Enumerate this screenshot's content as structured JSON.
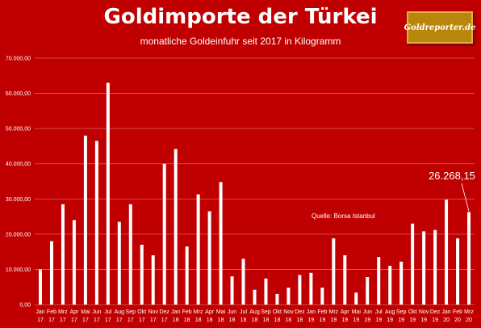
{
  "header": {
    "title": "Goldimporte der Türkei",
    "subtitle": "monatliche Goldeinfuhr seit 2017 in Kilogramm",
    "logo_text": "Goldreporter.de"
  },
  "chart_data": {
    "type": "bar",
    "title": "Goldimporte der Türkei",
    "subtitle": "monatliche Goldeinfuhr seit 2017 in Kilogramm",
    "xlabel": "",
    "ylabel": "",
    "ylim": [
      0,
      70000
    ],
    "yticks": [
      0,
      10000,
      20000,
      30000,
      40000,
      50000,
      60000,
      70000
    ],
    "ytick_labels": [
      "0,00",
      "10.000,00",
      "20.000,00",
      "30.000,00",
      "40.000,00",
      "50.000,00",
      "60.000,00",
      "70.000,00"
    ],
    "grid": true,
    "categories": [
      {
        "month": "Jan",
        "year": "17"
      },
      {
        "month": "Feb",
        "year": "17"
      },
      {
        "month": "Mrz",
        "year": "17"
      },
      {
        "month": "Apr",
        "year": "17"
      },
      {
        "month": "Mai",
        "year": "17"
      },
      {
        "month": "Jun",
        "year": "17"
      },
      {
        "month": "Jul",
        "year": "17"
      },
      {
        "month": "Aug",
        "year": "17"
      },
      {
        "month": "Sep",
        "year": "17"
      },
      {
        "month": "Okt",
        "year": "17"
      },
      {
        "month": "Nov",
        "year": "17"
      },
      {
        "month": "Dez",
        "year": "17"
      },
      {
        "month": "Jan",
        "year": "18"
      },
      {
        "month": "Feb",
        "year": "18"
      },
      {
        "month": "Mrz",
        "year": "18"
      },
      {
        "month": "Apr",
        "year": "18"
      },
      {
        "month": "Mai",
        "year": "18"
      },
      {
        "month": "Jun",
        "year": "18"
      },
      {
        "month": "Jul",
        "year": "18"
      },
      {
        "month": "Aug",
        "year": "18"
      },
      {
        "month": "Sep",
        "year": "18"
      },
      {
        "month": "Okt",
        "year": "18"
      },
      {
        "month": "Nov",
        "year": "18"
      },
      {
        "month": "Dez",
        "year": "18"
      },
      {
        "month": "Jan",
        "year": "19"
      },
      {
        "month": "Feb",
        "year": "19"
      },
      {
        "month": "Mrz",
        "year": "19"
      },
      {
        "month": "Apr",
        "year": "19"
      },
      {
        "month": "Mai",
        "year": "19"
      },
      {
        "month": "Jun",
        "year": "19"
      },
      {
        "month": "Jul",
        "year": "19"
      },
      {
        "month": "Aug",
        "year": "19"
      },
      {
        "month": "Sep",
        "year": "19"
      },
      {
        "month": "Okt",
        "year": "19"
      },
      {
        "month": "Nov",
        "year": "19"
      },
      {
        "month": "Dez",
        "year": "19"
      },
      {
        "month": "Jan",
        "year": "20"
      },
      {
        "month": "Feb",
        "year": "20"
      },
      {
        "month": "Mrz",
        "year": "20"
      }
    ],
    "values": [
      10000,
      18000,
      28500,
      24000,
      48000,
      46500,
      63000,
      23500,
      28500,
      17000,
      14000,
      40000,
      44200,
      16500,
      31300,
      26500,
      34800,
      8000,
      13000,
      4200,
      7400,
      3000,
      4800,
      8400,
      9000,
      4800,
      18800,
      14000,
      3400,
      7800,
      13500,
      11000,
      12200,
      23000,
      20800,
      21200,
      29800,
      18800,
      26268.15
    ],
    "annotations": [
      {
        "text": "26.268,15",
        "target_index": 38
      },
      {
        "text": "Quelle: Borsa Istanbul"
      }
    ],
    "colors": {
      "background": "#c00000",
      "bars": "#ffffff",
      "grid": "#e06060"
    }
  }
}
